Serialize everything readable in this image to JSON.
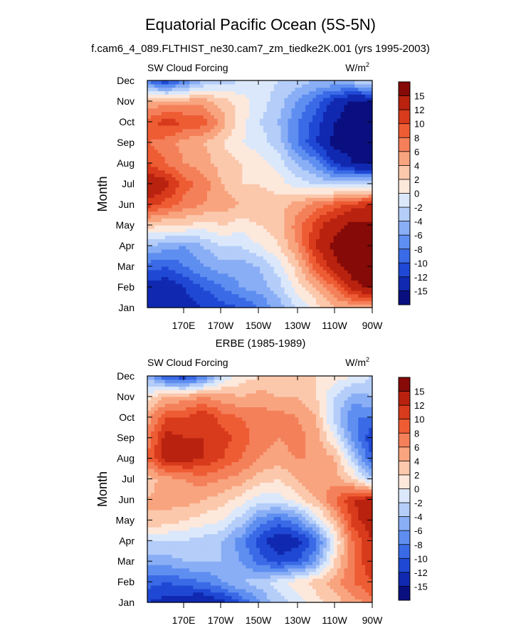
{
  "title": "Equatorial Pacific Ocean (5S-5N)",
  "subtitle": "f.cam6_4_089.FLTHIST_ne30.cam7_zm_tiedke2K.001 (yrs 1995-2003)",
  "palette": [
    "#0a0f80",
    "#1029b0",
    "#1f48d4",
    "#3a6ae6",
    "#5e8ef0",
    "#89aef5",
    "#b4cdf9",
    "#dbe8fb",
    "#fde8dc",
    "#fbc8ac",
    "#f8a47f",
    "#f4805a",
    "#ee5c34",
    "#d83a1c",
    "#b8220f",
    "#850a08"
  ],
  "chart_data": [
    {
      "type": "heatmap",
      "panel_title": "",
      "left_label": "SW Cloud Forcing",
      "units": "W/m",
      "units_sup": "2",
      "ylabel": "Month",
      "x_ticks": [
        "170E",
        "170W",
        "150W",
        "130W",
        "110W",
        "90W"
      ],
      "y_ticks": [
        "Jan",
        "Feb",
        "Mar",
        "Apr",
        "May",
        "Jun",
        "Jul",
        "Aug",
        "Sep",
        "Oct",
        "Nov",
        "Dec"
      ],
      "colorbar_levels": [
        "15",
        "12",
        "10",
        "8",
        "6",
        "4",
        "2",
        "0",
        "-2",
        "-4",
        "-6",
        "-8",
        "-10",
        "-12",
        "-15"
      ],
      "x": [
        150,
        160,
        170,
        180,
        190,
        200,
        210,
        220,
        230,
        240,
        250,
        260,
        270
      ],
      "rows": [
        [
          -14,
          -15,
          -13,
          -12,
          -11,
          -10,
          -8,
          -5,
          -2,
          1,
          4,
          4,
          3
        ],
        [
          -13,
          -14,
          -12,
          -10,
          -8,
          -6,
          -5,
          -3,
          1,
          4,
          8,
          14,
          16
        ],
        [
          -9,
          -10,
          -8,
          -6,
          -5,
          -5,
          -4,
          -1,
          3,
          9,
          14,
          17,
          17
        ],
        [
          -4,
          -5,
          -6,
          -4,
          -2,
          -2,
          0,
          2,
          6,
          12,
          16,
          17,
          17
        ],
        [
          3,
          2,
          2,
          1,
          2,
          1,
          2,
          3,
          7,
          11,
          14,
          16,
          16
        ],
        [
          11,
          9,
          7,
          6,
          5,
          4,
          3,
          3,
          5,
          7,
          9,
          11,
          12
        ],
        [
          15,
          13,
          9,
          7,
          4,
          2,
          2,
          1,
          -1,
          -2,
          -3,
          -3,
          -2
        ],
        [
          10,
          8,
          6,
          5,
          3,
          2,
          1,
          -1,
          -4,
          -7,
          -12,
          -15,
          -16
        ],
        [
          8,
          7,
          5,
          4,
          2,
          0,
          -1,
          -3,
          -8,
          -12,
          -16,
          -17,
          -17
        ],
        [
          9,
          11,
          10,
          9,
          5,
          1,
          -2,
          -4,
          -8,
          -11,
          -15,
          -17,
          -17
        ],
        [
          4,
          5,
          5,
          5,
          3,
          1,
          -1,
          -3,
          -6,
          -9,
          -13,
          -16,
          -15
        ],
        [
          -8,
          -12,
          -8,
          -4,
          -3,
          -2,
          -1,
          -2,
          -3,
          -4,
          -4,
          -3,
          -1
        ]
      ]
    },
    {
      "type": "heatmap",
      "panel_title": "ERBE (1985-1989)",
      "left_label": "SW Cloud Forcing",
      "units": "W/m",
      "units_sup": "2",
      "ylabel": "Month",
      "x_ticks": [
        "170E",
        "170W",
        "150W",
        "130W",
        "110W",
        "90W"
      ],
      "y_ticks": [
        "Jan",
        "Feb",
        "Mar",
        "Apr",
        "May",
        "Jun",
        "Jul",
        "Aug",
        "Sep",
        "Oct",
        "Nov",
        "Dec"
      ],
      "colorbar_levels": [
        "15",
        "12",
        "10",
        "8",
        "6",
        "4",
        "2",
        "0",
        "-2",
        "-4",
        "-6",
        "-8",
        "-10",
        "-12",
        "-15"
      ],
      "x": [
        150,
        160,
        170,
        180,
        190,
        200,
        210,
        220,
        230,
        240,
        250,
        260,
        270
      ],
      "rows": [
        [
          -12,
          -13,
          -14,
          -15,
          -13,
          -10,
          -6,
          -3,
          -1,
          1,
          3,
          5,
          7
        ],
        [
          -9,
          -10,
          -9,
          -8,
          -6,
          -4,
          -3,
          -1,
          1,
          3,
          5,
          8,
          10
        ],
        [
          -5,
          -5,
          -4,
          -4,
          -4,
          -6,
          -9,
          -11,
          -10,
          -6,
          2,
          8,
          12
        ],
        [
          -2,
          -2,
          -2,
          -3,
          -4,
          -7,
          -11,
          -14,
          -13,
          -9,
          0,
          8,
          12
        ],
        [
          4,
          3,
          2,
          1,
          0,
          -3,
          -7,
          -9,
          -7,
          -2,
          4,
          11,
          14
        ],
        [
          4,
          5,
          5,
          4,
          3,
          1,
          -1,
          -1,
          1,
          4,
          8,
          12,
          14
        ],
        [
          3,
          5,
          6,
          7,
          6,
          5,
          3,
          2,
          4,
          6,
          5,
          2,
          -4
        ],
        [
          8,
          13,
          13,
          12,
          10,
          8,
          6,
          5,
          6,
          6,
          4,
          -3,
          -10
        ],
        [
          7,
          13,
          12,
          12,
          11,
          9,
          7,
          6,
          7,
          5,
          0,
          -7,
          -12
        ],
        [
          5,
          10,
          10,
          12,
          9,
          8,
          7,
          7,
          6,
          4,
          -3,
          -8,
          -8
        ],
        [
          1,
          4,
          5,
          6,
          5,
          4,
          5,
          4,
          4,
          2,
          -2,
          -5,
          -4
        ],
        [
          -4,
          -10,
          -12,
          -8,
          -2,
          1,
          2,
          2,
          2,
          2,
          1,
          0,
          -2
        ]
      ]
    }
  ]
}
